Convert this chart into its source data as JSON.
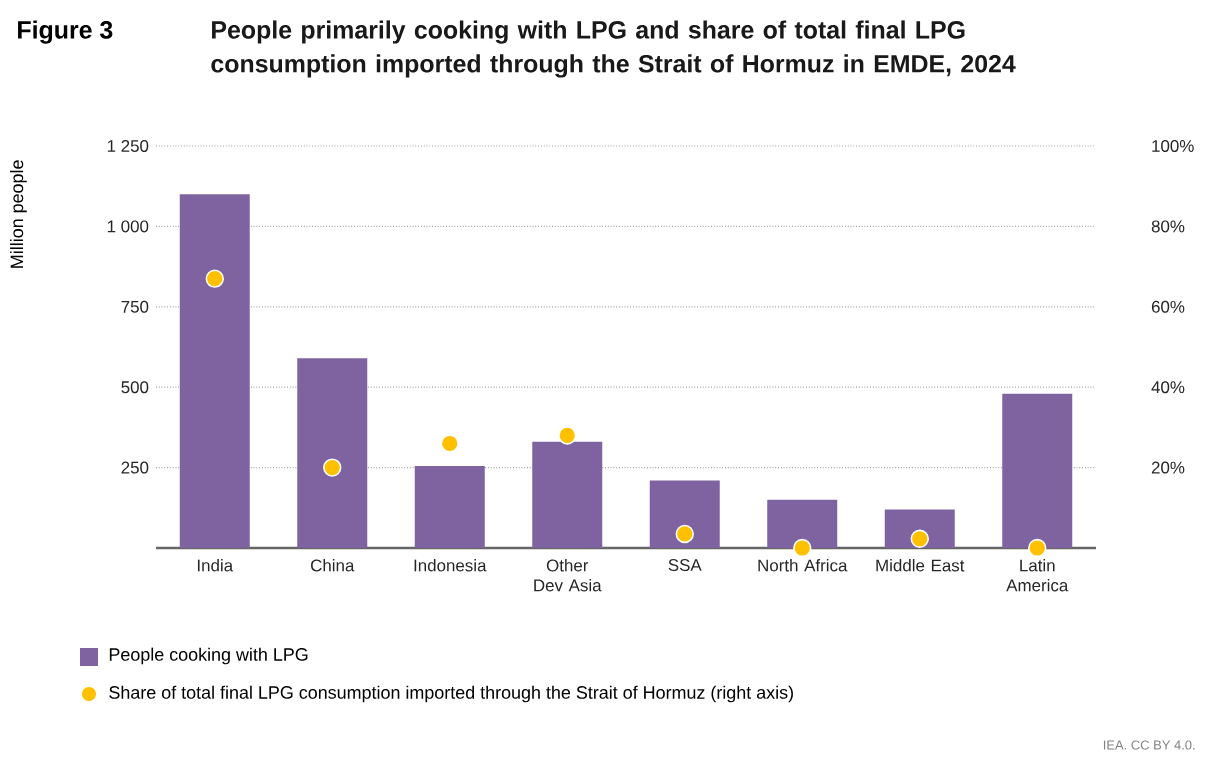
{
  "chart_data": {
    "type": "bar",
    "title": "People primarily cooking with LPG and share of total final LPG consumption imported through the Strait of Hormuz in EMDE, 2024",
    "annotations": [
      "Figure 3",
      "IEA. CC BY 4.0."
    ],
    "ylabel": "Million people",
    "categories": [
      "India",
      "China",
      "Indonesia",
      "Other Dev Asia",
      "SSA",
      "North Africa",
      "Middle East",
      "Latin America"
    ],
    "series": [
      {
        "name": "People cooking with LPG",
        "color": "#7f63a0",
        "values": [
          1100,
          590,
          255,
          330,
          210,
          150,
          120,
          480
        ]
      },
      {
        "name": "Share of total final LPG consumption imported through the Strait of Hormuz (right axis)",
        "type": "scatter",
        "axis": "y2",
        "color": "#ffc000",
        "marker": "circle",
        "values": [
          67,
          20,
          26,
          28,
          3.5,
          0,
          2.3,
          0
        ]
      }
    ],
    "ylim": [
      0,
      1250
    ],
    "yticks": [
      {
        "value": 250,
        "label": "250"
      },
      {
        "value": 500,
        "label": "500"
      },
      {
        "value": 750,
        "label": "750"
      },
      {
        "value": 1000,
        "label": "1 000"
      },
      {
        "value": 1250,
        "label": "1 250"
      }
    ],
    "y2lim": [
      0,
      100
    ],
    "y2ticks": [
      {
        "value": 20,
        "label": "20%"
      },
      {
        "value": 40,
        "label": "40%"
      },
      {
        "value": 60,
        "label": "60%"
      },
      {
        "value": 80,
        "label": "80%"
      },
      {
        "value": 100,
        "label": "100%"
      }
    ],
    "grid": "y",
    "legend": "bottom"
  }
}
